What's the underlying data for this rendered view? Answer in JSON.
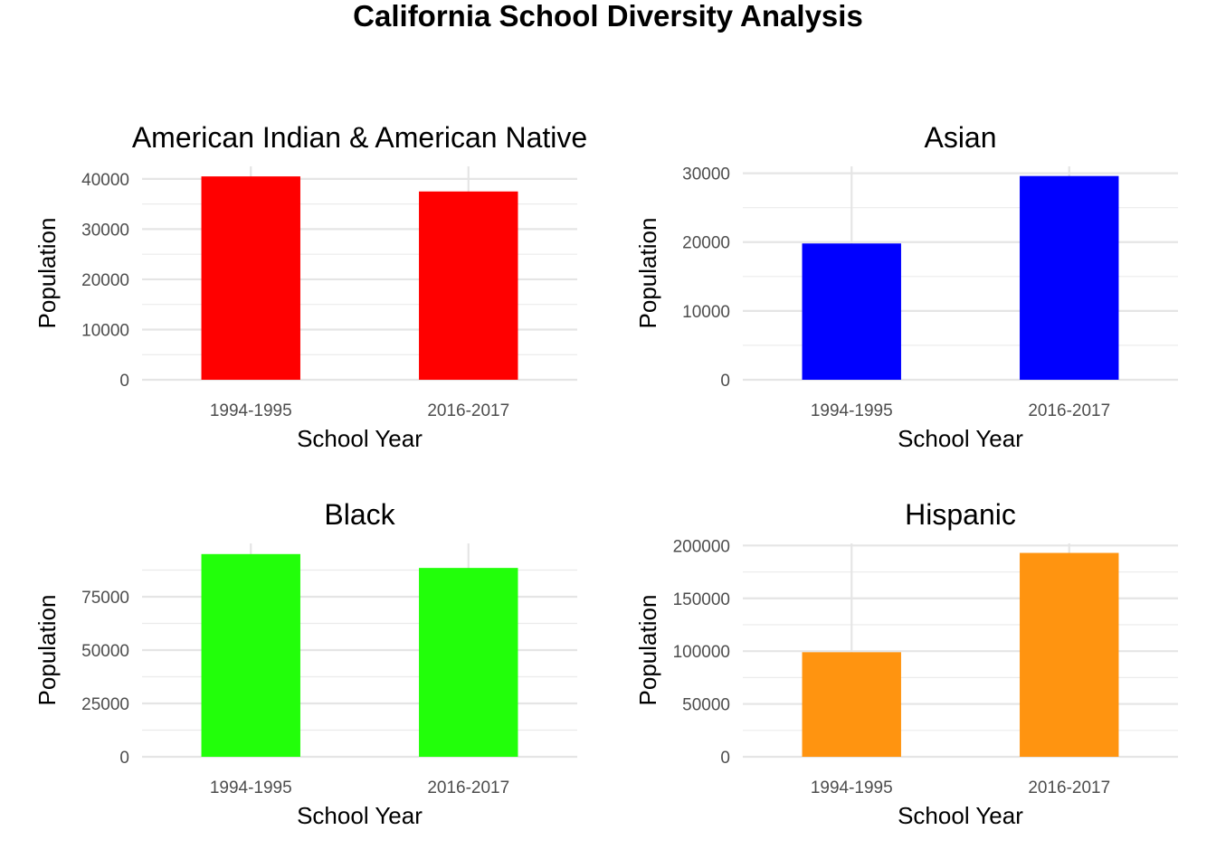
{
  "title": "California School Diversity Analysis",
  "chart_data": [
    {
      "type": "bar",
      "title": "American Indian & American Native",
      "xlabel": "School Year",
      "ylabel": "Population",
      "categories": [
        "1994-1995",
        "2016-2017"
      ],
      "values": [
        40500,
        37500
      ],
      "ylim": [
        0,
        42500
      ],
      "yticks": [
        0,
        10000,
        20000,
        30000,
        40000
      ],
      "color": "#ff0000",
      "grid": true
    },
    {
      "type": "bar",
      "title": "Asian",
      "xlabel": "School Year",
      "ylabel": "Population",
      "categories": [
        "1994-1995",
        "2016-2017"
      ],
      "values": [
        19800,
        29600
      ],
      "ylim": [
        0,
        31000
      ],
      "yticks": [
        0,
        10000,
        20000,
        30000
      ],
      "color": "#0000ff",
      "grid": true
    },
    {
      "type": "bar",
      "title": "Black",
      "xlabel": "School Year",
      "ylabel": "Population",
      "categories": [
        "1994-1995",
        "2016-2017"
      ],
      "values": [
        95000,
        88500
      ],
      "ylim": [
        0,
        100000
      ],
      "yticks": [
        0,
        25000,
        50000,
        75000
      ],
      "color": "#22ff0a",
      "grid": true
    },
    {
      "type": "bar",
      "title": "Hispanic",
      "xlabel": "School Year",
      "ylabel": "Population",
      "categories": [
        "1994-1995",
        "2016-2017"
      ],
      "values": [
        99000,
        193000
      ],
      "ylim": [
        0,
        202000
      ],
      "yticks": [
        0,
        50000,
        100000,
        150000,
        200000
      ],
      "color": "#ff9410",
      "grid": true
    }
  ]
}
